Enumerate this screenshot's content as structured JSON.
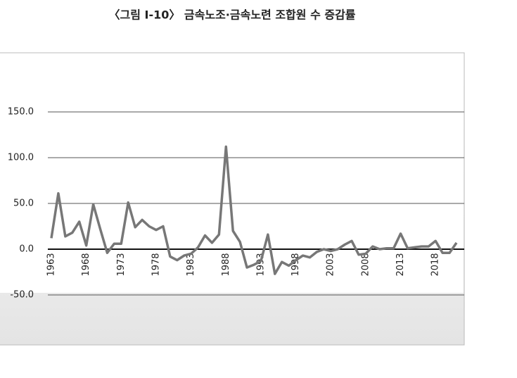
{
  "chart_data": {
    "type": "line",
    "title": "〈그림 Ⅰ-10〉 금속노조·금속노련 조합원 수 증감률",
    "x": [
      1963,
      1964,
      1965,
      1966,
      1967,
      1968,
      1969,
      1970,
      1971,
      1972,
      1973,
      1974,
      1975,
      1976,
      1977,
      1978,
      1979,
      1980,
      1981,
      1982,
      1983,
      1984,
      1985,
      1986,
      1987,
      1988,
      1989,
      1990,
      1991,
      1992,
      1993,
      1994,
      1995,
      1996,
      1997,
      1998,
      1999,
      2000,
      2001,
      2002,
      2003,
      2004,
      2005,
      2006,
      2007,
      2008,
      2009,
      2010,
      2011,
      2012,
      2013,
      2014,
      2015,
      2016,
      2017,
      2018,
      2019,
      2020,
      2021
    ],
    "values": [
      12,
      61,
      14,
      18,
      30,
      4,
      49,
      22,
      -4,
      6,
      6,
      51,
      24,
      32,
      25,
      21,
      25,
      -8,
      -12,
      -7,
      -5,
      2,
      15,
      7,
      16,
      112,
      20,
      8,
      -20,
      -17,
      -13,
      16,
      -27,
      -14,
      -18,
      -12,
      -7,
      -9,
      -3,
      0,
      -2,
      0,
      5,
      9,
      -6,
      -5,
      3,
      0,
      1,
      1,
      17,
      1,
      2,
      3,
      3,
      9,
      -4,
      -4,
      7
    ],
    "color": "#777777",
    "xlim": [
      1963,
      2021
    ],
    "xticks": [
      1963,
      1968,
      1973,
      1978,
      1983,
      1988,
      1993,
      1998,
      2003,
      2008,
      2013,
      2018
    ],
    "ylim": [
      -100,
      200
    ],
    "yticks": [
      {
        "value": 150,
        "label": "150.0"
      },
      {
        "value": 100,
        "label": "100.0"
      },
      {
        "value": 50,
        "label": "50.0"
      },
      {
        "value": 0,
        "label": "0.0"
      },
      {
        "value": -50,
        "label": "-50.0"
      }
    ],
    "grid": true
  }
}
